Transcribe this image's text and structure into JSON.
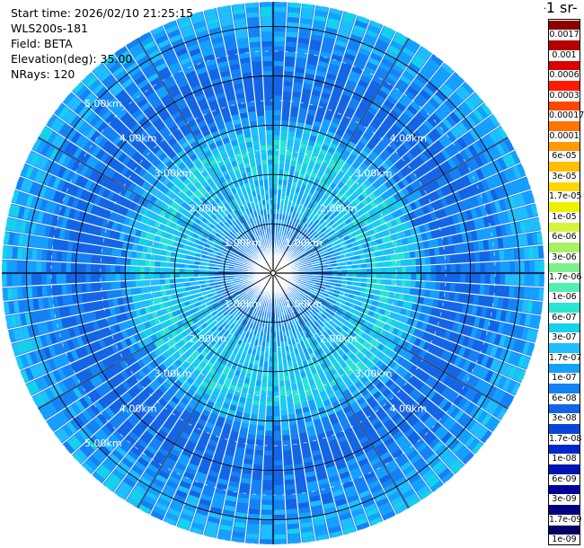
{
  "info": {
    "start_time": "Start time: 2026/02/10 21:25:15",
    "instrument": "WLS200s-181",
    "field": "Field: BETA",
    "elevation": "Elevation(deg): 35.00",
    "nrays": "NRays: 120"
  },
  "colorbar": {
    "title": "-1 sr-",
    "labels": [
      "0.0017",
      "0.001",
      "0.0006",
      "0.0003",
      "0.00017",
      "0.0001",
      "6e-05",
      "3e-05",
      "1.7e-05",
      "1e-05",
      "6e-06",
      "3e-06",
      "1.7e-06",
      "1e-06",
      "6e-07",
      "3e-07",
      "1.7e-07",
      "1e-07",
      "6e-08",
      "3e-08",
      "1.7e-08",
      "1e-08",
      "6e-09",
      "3e-09",
      "1.7e-09",
      "1e-09"
    ],
    "colors": [
      "#8b0000",
      "#b40000",
      "#dc0000",
      "#ff1a00",
      "#ff4600",
      "#ff7300",
      "#ff9a00",
      "#ffbe00",
      "#ffd700",
      "#f0f000",
      "#d2f53c",
      "#a8f064",
      "#7df08c",
      "#50f0b4",
      "#28e6d2",
      "#14d2eb",
      "#1ebeff",
      "#14a0ff",
      "#1482f5",
      "#1464e6",
      "#0a46d7",
      "#0028c8",
      "#0014b4",
      "#00009b",
      "#000082",
      "#000064"
    ]
  },
  "chart_data": {
    "type": "ppi",
    "title": "",
    "field": "BETA",
    "elevation_deg": 35.0,
    "nrays": 120,
    "max_range_km": 5.5,
    "range_rings_km": [
      1,
      2,
      3,
      4,
      5
    ],
    "range_labels": [
      "1.00km",
      "2.00km",
      "3.00km",
      "4.00km",
      "5.00km"
    ],
    "azimuth_lines_deg": [
      0,
      30,
      60,
      90,
      120,
      150,
      180,
      210,
      240,
      270,
      300,
      330
    ],
    "typical_beta_by_range": [
      {
        "range_km": 0.5,
        "beta": 3e-08
      },
      {
        "range_km": 1.5,
        "beta": 6e-08
      },
      {
        "range_km": 2.5,
        "beta": 1e-07
      },
      {
        "range_km": 3.5,
        "beta": 1.7e-08
      },
      {
        "range_km": 4.5,
        "beta": 3e-08
      },
      {
        "range_km": 5.3,
        "beta": 6e-08
      }
    ]
  }
}
